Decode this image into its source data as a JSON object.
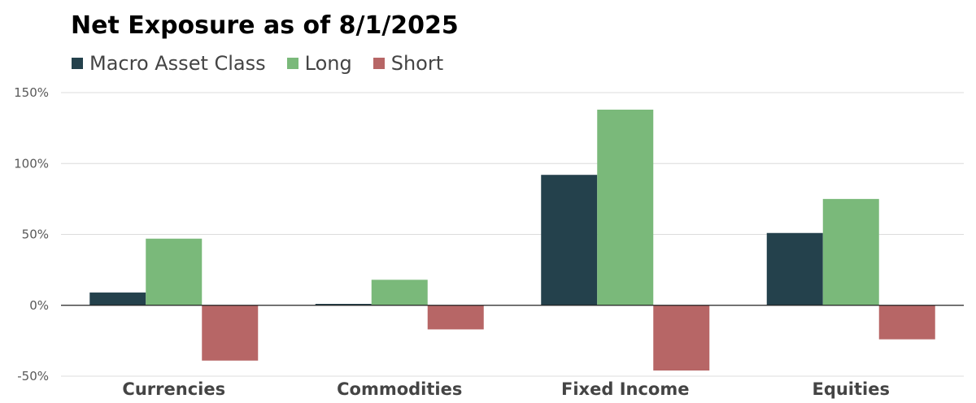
{
  "chart_data": {
    "type": "bar",
    "title": "Net Exposure as of 8/1/2025",
    "categories": [
      "Currencies",
      "Commodities",
      "Fixed Income",
      "Equities"
    ],
    "series": [
      {
        "name": "Macro Asset Class",
        "color": "#24414C",
        "values": [
          9,
          1,
          92,
          51
        ]
      },
      {
        "name": "Long",
        "color": "#7AB97A",
        "values": [
          47,
          18,
          138,
          75
        ]
      },
      {
        "name": "Short",
        "color": "#B76666",
        "values": [
          -39,
          -17,
          -46,
          -24
        ]
      }
    ],
    "ylim": [
      -50,
      150
    ],
    "yticks": [
      150,
      100,
      50,
      0,
      -50
    ],
    "ytick_labels": [
      "150%",
      "100%",
      "50%",
      "0%",
      "-50%"
    ],
    "xlabel": "",
    "ylabel": "",
    "grid": true,
    "legend_position": "top-left"
  }
}
